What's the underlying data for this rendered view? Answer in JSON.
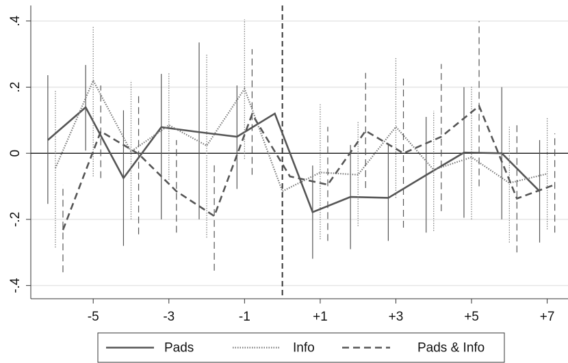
{
  "chart_data": {
    "type": "line",
    "x": [
      -6,
      -5,
      -4,
      -3,
      -2,
      -1,
      0,
      1,
      2,
      3,
      4,
      5,
      6,
      7
    ],
    "xlim": [
      -6.65,
      7.55
    ],
    "xticks": [
      -5,
      -3,
      -1,
      {
        "value": 1,
        "label": "+1"
      },
      {
        "value": 3,
        "label": "+3"
      },
      {
        "value": 5,
        "label": "+5"
      },
      {
        "value": 7,
        "label": "+7"
      }
    ],
    "ylim": [
      -0.44,
      0.447
    ],
    "yticks": [
      {
        "value": -0.4,
        "label": "-.4"
      },
      {
        "value": -0.2,
        "label": "-.2"
      },
      0,
      {
        "value": 0.2,
        "label": ".2"
      },
      {
        "value": 0.4,
        "label": ".4"
      }
    ],
    "grid": true,
    "hline": 0,
    "vline": 0,
    "legend": "bottom",
    "series": [
      {
        "name": "Pads",
        "color": "#555555",
        "style": "solid",
        "values": [
          0.04,
          0.139,
          -0.075,
          0.079,
          0.064,
          0.05,
          0.12,
          -0.178,
          -0.132,
          -0.135,
          -0.066,
          0.002,
          0.0,
          -0.115
        ],
        "ci_high": [
          0.236,
          0.267,
          0.13,
          0.24,
          0.335,
          0.205,
          null,
          -0.037,
          0.025,
          0.03,
          0.11,
          0.2,
          0.2,
          0.04
        ],
        "ci_low": [
          -0.153,
          0.008,
          -0.28,
          -0.2,
          -0.2,
          -0.108,
          null,
          -0.319,
          -0.29,
          -0.265,
          -0.24,
          -0.195,
          -0.2,
          -0.27
        ]
      },
      {
        "name": "Info",
        "color": "#777777",
        "style": "dotted",
        "values": [
          -0.045,
          0.22,
          0.005,
          0.085,
          0.023,
          0.195,
          -0.115,
          -0.058,
          -0.065,
          0.08,
          -0.05,
          -0.012,
          -0.09,
          -0.062
        ],
        "ci_high": [
          0.19,
          0.385,
          0.22,
          0.245,
          0.3,
          0.405,
          null,
          0.148,
          0.095,
          0.29,
          0.128,
          0.205,
          0.08,
          0.11
        ],
        "ci_low": [
          -0.285,
          -0.07,
          -0.2,
          -0.08,
          -0.255,
          -0.017,
          null,
          -0.26,
          -0.22,
          -0.135,
          -0.235,
          -0.2,
          -0.27,
          -0.23
        ]
      },
      {
        "name": "Pads & Info",
        "color": "#555555",
        "style": "dashed",
        "values": [
          -0.232,
          0.066,
          -0.002,
          -0.115,
          -0.19,
          0.118,
          -0.07,
          -0.095,
          0.068,
          0.0,
          0.05,
          0.143,
          -0.137,
          -0.095
        ],
        "ci_high": [
          -0.095,
          0.205,
          0.178,
          0.04,
          -0.028,
          0.315,
          null,
          0.08,
          0.243,
          0.232,
          0.27,
          0.4,
          0.09,
          0.06
        ],
        "ci_low": [
          -0.36,
          -0.075,
          -0.245,
          -0.24,
          -0.355,
          -0.065,
          null,
          -0.265,
          -0.105,
          -0.225,
          -0.175,
          -0.1,
          -0.3,
          -0.24
        ]
      }
    ]
  }
}
